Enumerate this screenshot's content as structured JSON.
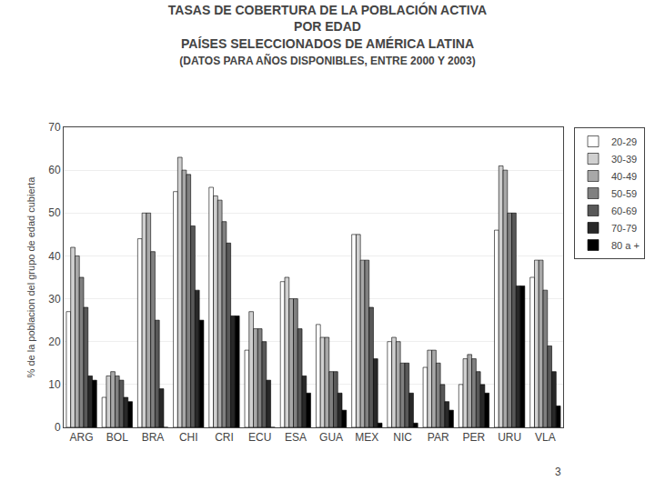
{
  "chart_data": {
    "type": "bar",
    "title": "TASAS DE COBERTURA DE LA POBLACIÓN ACTIVA\nPOR EDAD\nPAÍSES SELECCIONADOS DE AMÉRICA LATINA",
    "subtitle": "(DATOS PARA AÑOS DISPONIBLES, ENTRE 2000 Y 2003)",
    "y_label": "% de la poblacion del grupo de edad cubierta",
    "annotations": [
      {
        "text": "3"
      }
    ],
    "categories": [
      "ARG",
      "BOL",
      "BRA",
      "CHI",
      "CRI",
      "ECU",
      "ESA",
      "GUA",
      "MEX",
      "NIC",
      "PAR",
      "PER",
      "URU",
      "VLA"
    ],
    "series": [
      {
        "name": "20-29",
        "color": "#ffffff",
        "values": [
          27,
          7,
          44,
          55,
          56,
          18,
          34,
          24,
          45,
          20,
          14,
          10,
          46,
          35
        ]
      },
      {
        "name": "30-39",
        "color": "#d0d0d0",
        "values": [
          42,
          12,
          50,
          63,
          54,
          27,
          35,
          21,
          45,
          21,
          18,
          16,
          61,
          39
        ]
      },
      {
        "name": "40-49",
        "color": "#a8a8a8",
        "values": [
          40,
          13,
          50,
          60,
          53,
          23,
          30,
          21,
          39,
          20,
          18,
          17,
          60,
          39
        ]
      },
      {
        "name": "50-59",
        "color": "#808080",
        "values": [
          35,
          12,
          41,
          59,
          48,
          23,
          30,
          13,
          39,
          15,
          15,
          16,
          50,
          32
        ]
      },
      {
        "name": "60-69",
        "color": "#585858",
        "values": [
          28,
          11,
          25,
          47,
          43,
          20,
          23,
          13,
          28,
          15,
          10,
          13,
          50,
          19
        ]
      },
      {
        "name": "70-79",
        "color": "#282828",
        "values": [
          12,
          7,
          9,
          32,
          26,
          11,
          12,
          8,
          16,
          8,
          6,
          10,
          33,
          13
        ]
      },
      {
        "name": "80 a +",
        "color": "#000000",
        "values": [
          11,
          6,
          0,
          25,
          26,
          0,
          8,
          4,
          1,
          1,
          4,
          8,
          33,
          5
        ]
      }
    ],
    "ylim": [
      0,
      70
    ],
    "yticks": [
      0,
      10,
      20,
      30,
      40,
      50,
      60,
      70
    ],
    "grid": true,
    "legend": "upper right"
  }
}
